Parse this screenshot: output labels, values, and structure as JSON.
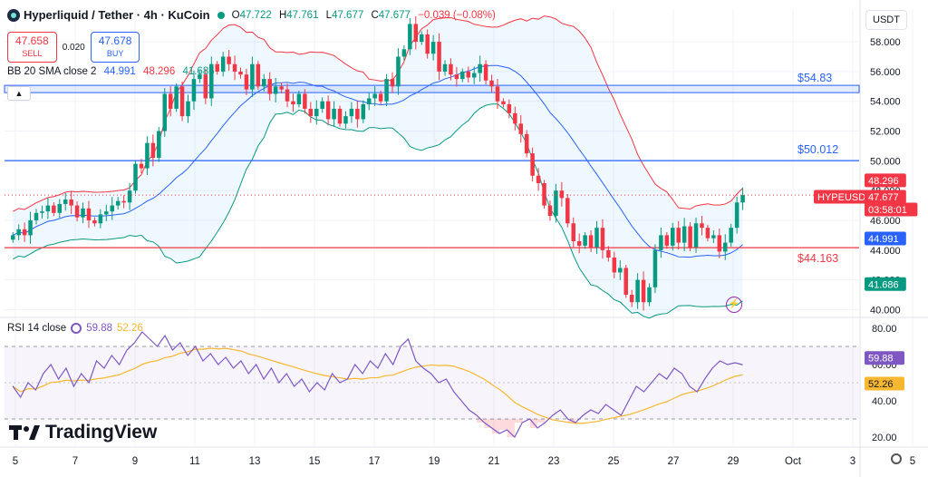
{
  "header": {
    "symbol": "Hyperliquid / Tether · 4h · KuCoin",
    "open_label": "O",
    "open": "47.722",
    "high_label": "H",
    "high": "47.761",
    "low_label": "L",
    "low": "47.677",
    "close_label": "C",
    "close": "47.677",
    "change": "−0.039 (−0.08%)"
  },
  "trade": {
    "sell_price": "47.658",
    "sell_label": "SELL",
    "spread": "0.020",
    "buy_price": "47.678",
    "buy_label": "BUY"
  },
  "bb_legend": {
    "label": "BB 20 SMA close 2",
    "basis": "44.991",
    "upper": "48.296",
    "lower": "41.686"
  },
  "rsi_legend": {
    "label": "RSI 14 close",
    "value": "59.88",
    "ma": "52.26"
  },
  "currency_button": "USDT",
  "brand": "TradingView",
  "colors": {
    "up": "#089981",
    "down": "#f23645",
    "basis": "#2962ff",
    "upper": "#f23645",
    "lower": "#089981",
    "rsi": "#7e57c2",
    "rsi_ma": "#f7b731"
  },
  "chart_data": [
    {
      "type": "candlestick",
      "x_tick_labels": [
        "5",
        "7",
        "9",
        "11",
        "13",
        "15",
        "17",
        "19",
        "21",
        "23",
        "25",
        "27",
        "29",
        "Oct",
        "3",
        "5"
      ],
      "y_tick_labels": [
        "40.000",
        "42.000",
        "44.000",
        "46.000",
        "48.000",
        "50.000",
        "52.000",
        "54.000",
        "56.000",
        "58.000"
      ],
      "ylim": [
        39.6,
        60.2
      ],
      "close_path": [
        45.0,
        45.4,
        45.0,
        46.0,
        46.5,
        46.6,
        47.0,
        46.5,
        47.1,
        47.4,
        47.0,
        46.2,
        46.8,
        46.0,
        45.8,
        46.4,
        46.6,
        47.0,
        47.3,
        47.2,
        48.0,
        49.8,
        49.5,
        51.2,
        50.2,
        52.0,
        54.5,
        53.5,
        55.0,
        53.0,
        54.0,
        55.5,
        55.8,
        54.2,
        56.5,
        56.0,
        57.0,
        56.5,
        56.0,
        55.8,
        54.8,
        56.5,
        55.0,
        55.5,
        54.5,
        55.0,
        54.8,
        54.0,
        53.8,
        54.5,
        53.5,
        53.0,
        53.5,
        54.0,
        52.8,
        53.5,
        52.5,
        53.0,
        53.5,
        52.8,
        53.8,
        54.2,
        54.5,
        54.0,
        55.5,
        55.0,
        57.0,
        57.5,
        59.2,
        58.0,
        58.5,
        57.2,
        58.0,
        56.0,
        56.5,
        55.8,
        55.5,
        56.0,
        55.6,
        55.9,
        56.5,
        55.4,
        55.0,
        54.0,
        53.8,
        53.2,
        52.5,
        51.8,
        50.5,
        49.0,
        48.5,
        47.0,
        46.3,
        48.0,
        47.5,
        45.8,
        44.6,
        44.3,
        45.0,
        44.2,
        45.5,
        44.0,
        43.5,
        42.5,
        42.8,
        41.0,
        40.5,
        42.0,
        40.5,
        41.5,
        44.0,
        45.0,
        44.3,
        45.5,
        44.5,
        45.6,
        44.2,
        45.8,
        45.5,
        44.8,
        45.0,
        43.9,
        44.5,
        45.5,
        47.2,
        47.7
      ],
      "horizontal_lines": [
        {
          "label": "$54.83",
          "value": 54.83,
          "color": "#2962ff"
        },
        {
          "label": "$50.012",
          "value": 50.012,
          "color": "#2962ff"
        },
        {
          "label": "$44.163",
          "value": 44.163,
          "color": "#f23645"
        }
      ],
      "price_axis_tags": [
        {
          "text": "48.296",
          "value": 48.296,
          "color": "#f23645"
        },
        {
          "text": "HYPEUSDT",
          "value": 47.677,
          "color": "#f23645"
        },
        {
          "text": "47.677",
          "value": 47.677,
          "color": "#f23645"
        },
        {
          "text": "03:58:01",
          "value": 47.677,
          "color": "#f23645"
        },
        {
          "text": "44.991",
          "value": 44.991,
          "color": "#2962ff"
        },
        {
          "text": "41.686",
          "value": 41.686,
          "color": "#089981"
        }
      ]
    },
    {
      "type": "line",
      "title": "RSI 14 close",
      "y_tick_labels": [
        "20.00",
        "40.00",
        "60.00",
        "80.00"
      ],
      "ylim": [
        15,
        85
      ],
      "bands": [
        30,
        70
      ],
      "rsi_path": [
        48,
        42,
        50,
        46,
        55,
        60,
        52,
        58,
        48,
        55,
        50,
        62,
        58,
        65,
        60,
        68,
        72,
        78,
        74,
        70,
        76,
        68,
        72,
        65,
        70,
        62,
        66,
        60,
        64,
        58,
        62,
        55,
        60,
        52,
        58,
        50,
        55,
        48,
        52,
        45,
        50,
        46,
        55,
        50,
        52,
        60,
        55,
        62,
        58,
        66,
        60,
        70,
        74,
        62,
        58,
        55,
        50,
        52,
        45,
        40,
        35,
        32,
        28,
        25,
        22,
        24,
        20,
        28,
        30,
        25,
        28,
        32,
        35,
        30,
        28,
        32,
        35,
        33,
        38,
        35,
        32,
        40,
        48,
        45,
        50,
        55,
        52,
        58,
        55,
        48,
        45,
        52,
        58,
        62,
        60,
        61,
        59.88
      ]
    }
  ]
}
